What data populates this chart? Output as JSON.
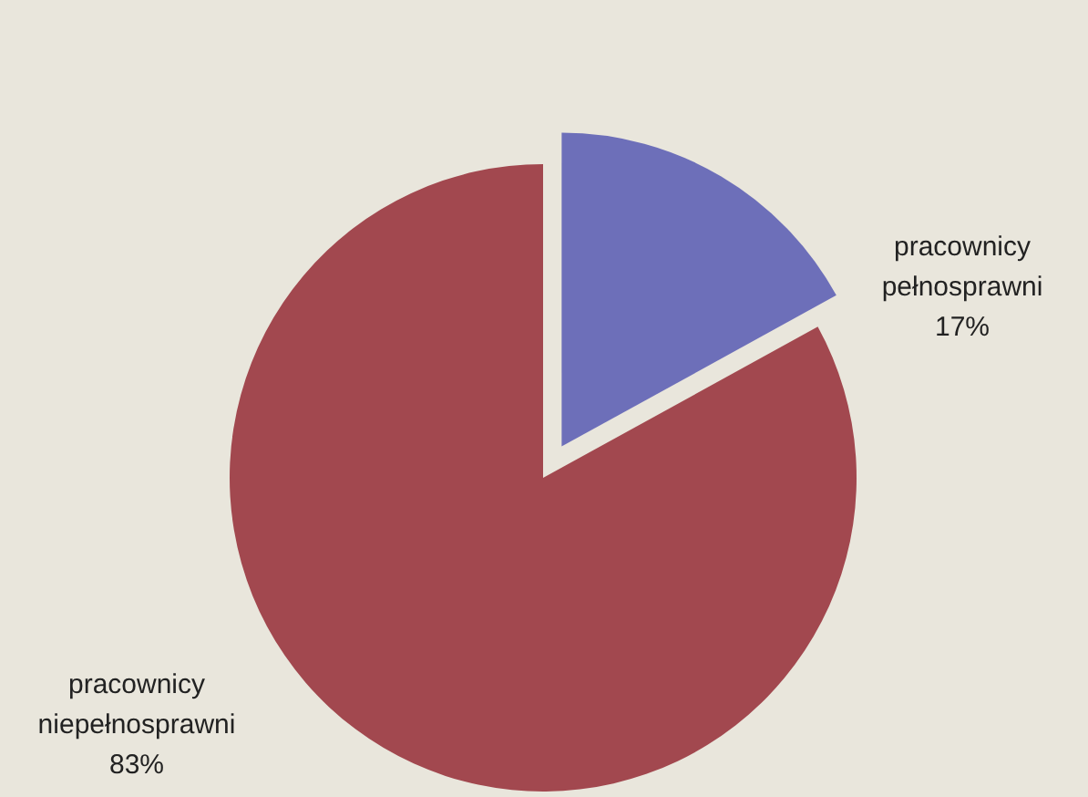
{
  "chart_data": {
    "type": "pie",
    "categories": [
      "pracownicy pełnosprawni",
      "pracownicy niepełnosprawni"
    ],
    "values": [
      17,
      83
    ],
    "colors": [
      "#6d6fb9",
      "#a2484f"
    ],
    "value_labels": [
      "17%",
      "83%"
    ]
  }
}
